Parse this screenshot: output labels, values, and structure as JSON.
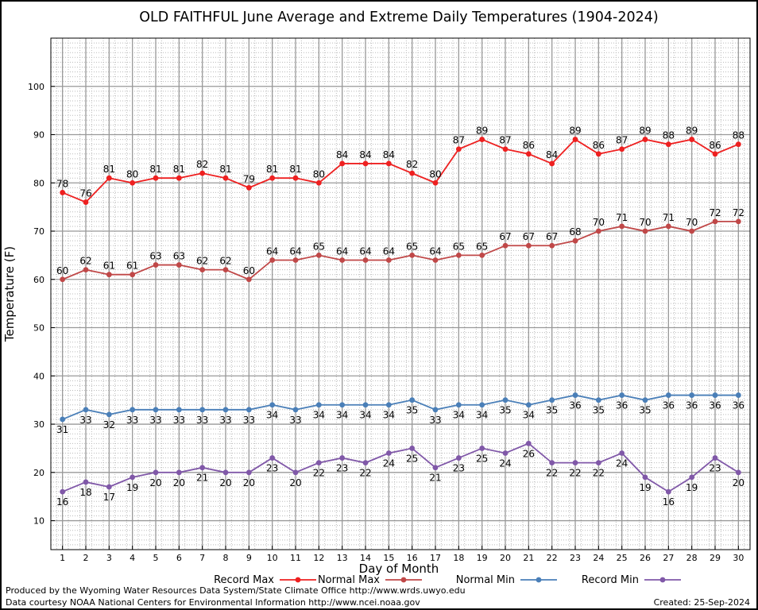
{
  "chart_data": {
    "type": "line",
    "title": "OLD FAITHFUL June Average and Extreme Daily Temperatures (1904-2024)",
    "xlabel": "Day of Month",
    "ylabel": "Temperature (F)",
    "x": [
      1,
      2,
      3,
      4,
      5,
      6,
      7,
      8,
      9,
      10,
      11,
      12,
      13,
      14,
      15,
      16,
      17,
      18,
      19,
      20,
      21,
      22,
      23,
      24,
      25,
      26,
      27,
      28,
      29,
      30
    ],
    "xlim": [
      0.5,
      30.5
    ],
    "ylim": [
      4,
      110
    ],
    "yticks": [
      10,
      20,
      30,
      40,
      50,
      60,
      70,
      80,
      90,
      100
    ],
    "grid": true,
    "legend_position": "bottom",
    "series": [
      {
        "name": "Record Max",
        "color": "#ee2020",
        "label_position": "above",
        "values": [
          78,
          76,
          81,
          80,
          81,
          81,
          82,
          81,
          79,
          81,
          81,
          80,
          84,
          84,
          84,
          82,
          80,
          87,
          89,
          87,
          86,
          84,
          89,
          86,
          87,
          89,
          88,
          89,
          86,
          88
        ]
      },
      {
        "name": "Normal Max",
        "color": "#c04848",
        "label_position": "above",
        "values": [
          60,
          62,
          61,
          61,
          63,
          63,
          62,
          62,
          60,
          64,
          64,
          65,
          64,
          64,
          64,
          65,
          64,
          65,
          65,
          67,
          67,
          67,
          68,
          70,
          71,
          70,
          71,
          70,
          72,
          72
        ]
      },
      {
        "name": "Normal Min",
        "color": "#4a7fb8",
        "label_position": "below",
        "values": [
          31,
          33,
          32,
          33,
          33,
          33,
          33,
          33,
          33,
          34,
          33,
          34,
          34,
          34,
          34,
          35,
          33,
          34,
          34,
          35,
          34,
          35,
          36,
          35,
          36,
          35,
          36,
          36,
          36,
          36
        ]
      },
      {
        "name": "Record Min",
        "color": "#8058a8",
        "label_position": "below",
        "values": [
          16,
          18,
          17,
          19,
          20,
          20,
          21,
          20,
          20,
          23,
          20,
          22,
          23,
          22,
          24,
          25,
          21,
          23,
          25,
          24,
          26,
          22,
          22,
          22,
          24,
          19,
          16,
          19,
          23,
          20
        ]
      }
    ]
  },
  "footer": {
    "produced_by": "Produced by the Wyoming Water Resources Data System/State Climate Office http://www.wrds.uwyo.edu",
    "courtesy": "Data courtesy NOAA National Centers for Environmental Information http://www.ncei.noaa.gov",
    "created": "Created:  25-Sep-2024"
  }
}
